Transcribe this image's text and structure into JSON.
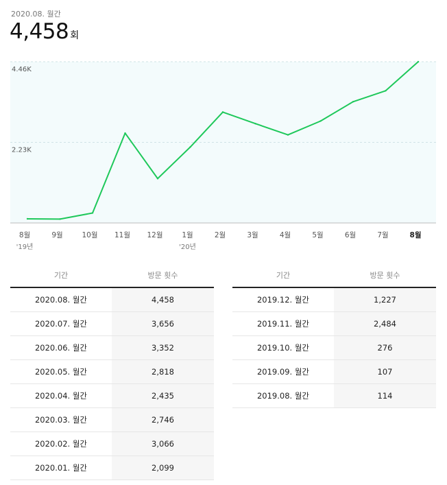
{
  "summary": {
    "period": "2020.08. 월간",
    "total": "4,458",
    "unit": "회"
  },
  "chart_data": {
    "type": "line",
    "x": [
      "8월",
      "9월",
      "10월",
      "11월",
      "12월",
      "1월",
      "2월",
      "3월",
      "4월",
      "5월",
      "6월",
      "7월",
      "8월"
    ],
    "year_labels": [
      {
        "index": 0,
        "label": "'19년"
      },
      {
        "index": 5,
        "label": "'20년"
      }
    ],
    "series": [
      {
        "values": [
          114,
          107,
          276,
          2484,
          1227,
          2099,
          3066,
          2746,
          2435,
          2818,
          3352,
          3656,
          4458
        ]
      }
    ],
    "ylim": [
      0,
      4458
    ],
    "yticks": [
      {
        "value": 2229,
        "label": "2.23K"
      },
      {
        "value": 4458,
        "label": "4.46K"
      }
    ],
    "grid": true,
    "colors": {
      "line": "#1ec85a",
      "plot_background": "#f3fbfc",
      "grid": "#cfe3e6",
      "axis": "#bbbbbb"
    }
  },
  "tables": {
    "left": {
      "headers": [
        "기간",
        "방문 횟수"
      ],
      "rows": [
        [
          "2020.08. 월간",
          "4,458"
        ],
        [
          "2020.07. 월간",
          "3,656"
        ],
        [
          "2020.06. 월간",
          "3,352"
        ],
        [
          "2020.05. 월간",
          "2,818"
        ],
        [
          "2020.04. 월간",
          "2,435"
        ],
        [
          "2020.03. 월간",
          "2,746"
        ],
        [
          "2020.02. 월간",
          "3,066"
        ],
        [
          "2020.01. 월간",
          "2,099"
        ]
      ]
    },
    "right": {
      "headers": [
        "기간",
        "방문 횟수"
      ],
      "rows": [
        [
          "2019.12. 월간",
          "1,227"
        ],
        [
          "2019.11. 월간",
          "2,484"
        ],
        [
          "2019.10. 월간",
          "276"
        ],
        [
          "2019.09. 월간",
          "107"
        ],
        [
          "2019.08. 월간",
          "114"
        ]
      ]
    }
  }
}
